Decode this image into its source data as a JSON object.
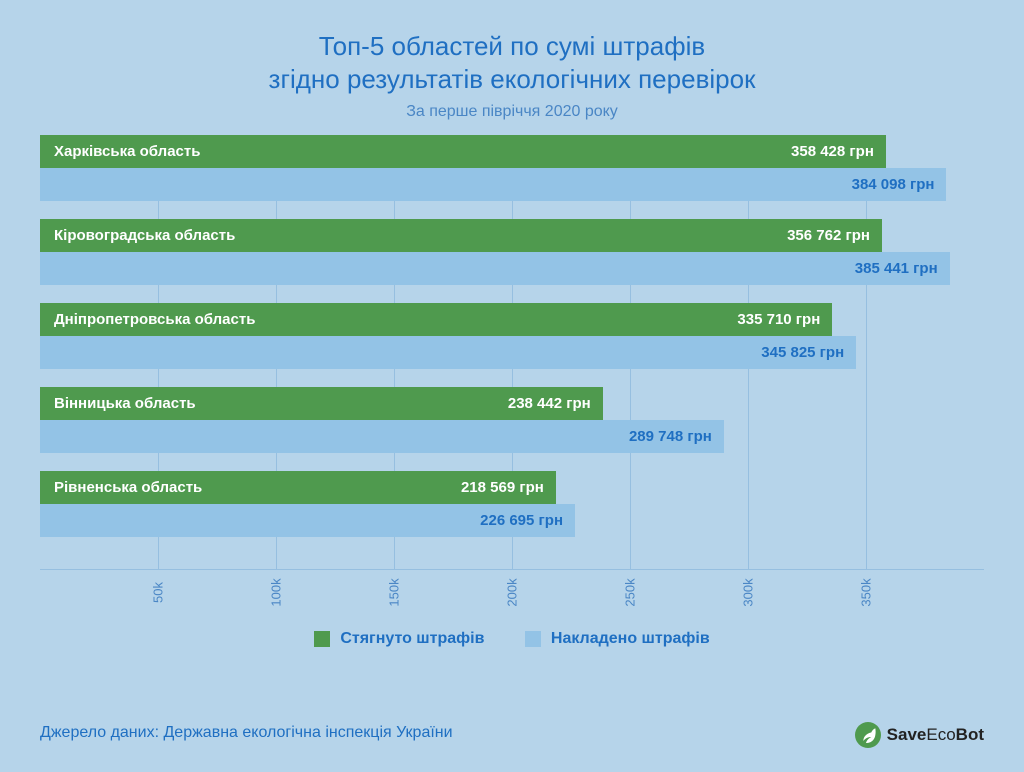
{
  "colors": {
    "background": "#b6d4ea",
    "title": "#1f6fc2",
    "subtitle": "#4a86c5",
    "bar_green": "#4f9a4e",
    "bar_blue": "#93c3e6",
    "bar_blue_text": "#1f6fc2",
    "tick_line": "#96bfe0",
    "tick_text": "#4a86c5",
    "baseline": "#96bfe0",
    "legend_text": "#1f6fc2",
    "source_text": "#1f6fc2",
    "brand_icon_bg": "#4f9a4e",
    "brand_text": "#222222"
  },
  "title_line1": "Топ-5 областей по сумі штрафів",
  "title_line2": "згідно результатів екологічних перевірок",
  "subtitle": "За перше півріччя 2020 року",
  "chart": {
    "type": "bar",
    "orientation": "horizontal",
    "x_max": 400000,
    "ticks": [
      {
        "value": 50000,
        "label": "50k"
      },
      {
        "value": 100000,
        "label": "100k"
      },
      {
        "value": 150000,
        "label": "150k"
      },
      {
        "value": 200000,
        "label": "200k"
      },
      {
        "value": 250000,
        "label": "250k"
      },
      {
        "value": 300000,
        "label": "300k"
      },
      {
        "value": 350000,
        "label": "350k"
      }
    ],
    "rows": [
      {
        "category": "Харківська область",
        "green_value": 358428,
        "green_label": "358 428 грн",
        "blue_value": 384098,
        "blue_label": "384 098 грн"
      },
      {
        "category": "Кіровоградська область",
        "green_value": 356762,
        "green_label": "356 762 грн",
        "blue_value": 385441,
        "blue_label": "385 441 грн"
      },
      {
        "category": "Дніпропетровська область",
        "green_value": 335710,
        "green_label": "335 710 грн",
        "blue_value": 345825,
        "blue_label": "345 825 грн"
      },
      {
        "category": "Вінницька область",
        "green_value": 238442,
        "green_label": "238 442 грн",
        "blue_value": 289748,
        "blue_label": "289 748 грн"
      },
      {
        "category": "Рівненська область",
        "green_value": 218569,
        "green_label": "218 569 грн",
        "blue_value": 226695,
        "blue_label": "226 695 грн"
      }
    ]
  },
  "legend": {
    "green": "Стягнуто штрафів",
    "blue": "Накладено штрафів"
  },
  "source": "Джерело даних: Державна екологічна інспекція України",
  "brand": {
    "bold": "Save",
    "mid": "Eco",
    "bold2": "Bot"
  }
}
